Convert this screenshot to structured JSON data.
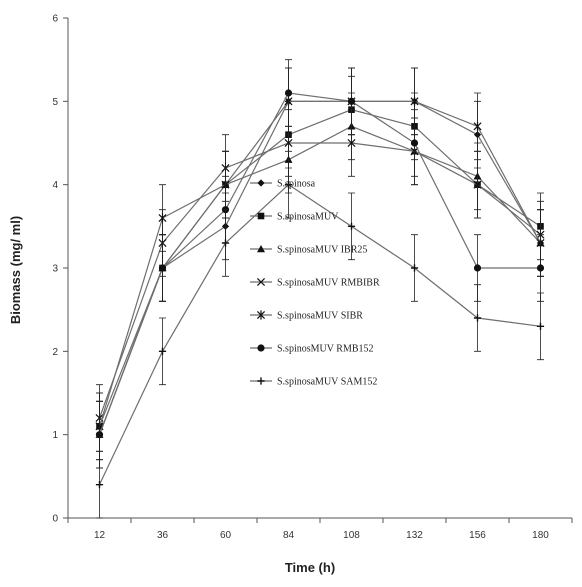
{
  "chart_data": {
    "type": "line",
    "title": "",
    "xlabel": "Time (h)",
    "ylabel": "Biomass (mg/ ml)",
    "x": [
      12,
      36,
      60,
      84,
      108,
      132,
      156,
      180
    ],
    "xlim": [
      0,
      192
    ],
    "ylim": [
      0,
      6
    ],
    "yticks": [
      0,
      1,
      2,
      3,
      4,
      5,
      6
    ],
    "grid": false,
    "legend_position": "center",
    "series": [
      {
        "name": "S.spinosa",
        "marker": "diamond",
        "values": [
          1.0,
          3.0,
          3.5,
          5.0,
          5.0,
          5.0,
          4.6,
          3.3
        ],
        "errors": [
          0.4,
          0.4,
          0.4,
          0.4,
          0.4,
          0.4,
          0.4,
          0.4
        ]
      },
      {
        "name": "S.spinosaMUV",
        "marker": "square",
        "values": [
          1.1,
          3.0,
          4.0,
          4.6,
          4.9,
          4.7,
          4.0,
          3.5
        ],
        "errors": [
          0.4,
          0.4,
          0.4,
          0.4,
          0.4,
          0.4,
          0.4,
          0.4
        ]
      },
      {
        "name": "S.spinosaMUV IBR25",
        "marker": "triangle",
        "values": [
          1.0,
          3.0,
          4.0,
          4.3,
          4.7,
          4.4,
          4.1,
          3.3
        ],
        "errors": [
          0.4,
          0.4,
          0.4,
          0.4,
          0.4,
          0.4,
          0.4,
          0.4
        ]
      },
      {
        "name": "S.spinosaMUV RMBIBR",
        "marker": "x",
        "values": [
          1.2,
          3.3,
          4.2,
          4.5,
          4.5,
          4.4,
          4.0,
          3.4
        ],
        "errors": [
          0.4,
          0.4,
          0.4,
          0.4,
          0.4,
          0.4,
          0.4,
          0.4
        ]
      },
      {
        "name": "S.spinosaMUV SIBR",
        "marker": "star",
        "values": [
          1.1,
          3.6,
          4.0,
          5.0,
          5.0,
          5.0,
          4.7,
          3.3
        ],
        "errors": [
          0.4,
          0.4,
          0.4,
          0.4,
          0.4,
          0.4,
          0.4,
          0.4
        ]
      },
      {
        "name": "S.spinosMUV RMB152",
        "marker": "circle",
        "values": [
          1.0,
          3.0,
          3.7,
          5.1,
          5.0,
          4.5,
          3.0,
          3.0
        ],
        "errors": [
          0.4,
          0.4,
          0.4,
          0.4,
          0.4,
          0.4,
          0.4,
          0.4
        ]
      },
      {
        "name": "S.spinosaMUV SAM152",
        "marker": "plus",
        "values": [
          0.4,
          2.0,
          3.3,
          4.0,
          3.5,
          3.0,
          2.4,
          2.3
        ],
        "errors": [
          0.4,
          0.4,
          0.4,
          0.4,
          0.4,
          0.4,
          0.4,
          0.4
        ]
      }
    ]
  },
  "colors": {
    "line": "#6e6e6e",
    "marker": "#111111",
    "axis": "#555555",
    "error_bar": "#222222"
  }
}
